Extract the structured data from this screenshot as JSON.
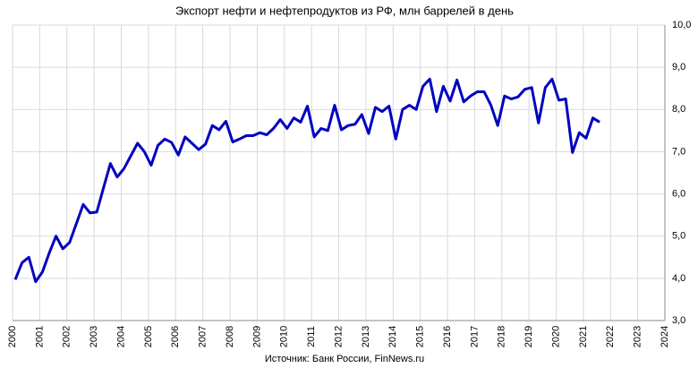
{
  "chart_data": {
    "type": "line",
    "title": "Экспорт нефти и нефтепродуктов из РФ, млн баррелей в день",
    "source": "Источник: Банк России, FinNews.ru",
    "xlim": [
      2000,
      2024
    ],
    "xticks": [
      2000,
      2001,
      2002,
      2003,
      2004,
      2005,
      2006,
      2007,
      2008,
      2009,
      2010,
      2011,
      2012,
      2013,
      2014,
      2015,
      2016,
      2017,
      2018,
      2019,
      2020,
      2021,
      2022,
      2023,
      2024
    ],
    "ylim": [
      3,
      10
    ],
    "yticks": [
      {
        "value": 3,
        "label": "3,0"
      },
      {
        "value": 4,
        "label": "4,0"
      },
      {
        "value": 5,
        "label": "5,0"
      },
      {
        "value": 6,
        "label": "6,0"
      },
      {
        "value": 7,
        "label": "7,0"
      },
      {
        "value": 8,
        "label": "8,0"
      },
      {
        "value": 9,
        "label": "9,0"
      },
      {
        "value": 10,
        "label": "10,0"
      }
    ],
    "grid": true,
    "x": [
      2000.1,
      2000.35,
      2000.6,
      2000.85,
      2001.1,
      2001.35,
      2001.6,
      2001.85,
      2002.1,
      2002.35,
      2002.6,
      2002.85,
      2003.1,
      2003.35,
      2003.6,
      2003.85,
      2004.1,
      2004.35,
      2004.6,
      2004.85,
      2005.1,
      2005.35,
      2005.6,
      2005.85,
      2006.1,
      2006.35,
      2006.6,
      2006.85,
      2007.1,
      2007.35,
      2007.6,
      2007.85,
      2008.1,
      2008.35,
      2008.6,
      2008.85,
      2009.1,
      2009.35,
      2009.6,
      2009.85,
      2010.1,
      2010.35,
      2010.6,
      2010.85,
      2011.1,
      2011.35,
      2011.6,
      2011.85,
      2012.1,
      2012.35,
      2012.6,
      2012.85,
      2013.1,
      2013.35,
      2013.6,
      2013.85,
      2014.1,
      2014.35,
      2014.6,
      2014.85,
      2015.1,
      2015.35,
      2015.6,
      2015.85,
      2016.1,
      2016.35,
      2016.6,
      2016.85,
      2017.1,
      2017.35,
      2017.6,
      2017.85,
      2018.1,
      2018.35,
      2018.6,
      2018.85,
      2019.1,
      2019.35,
      2019.6,
      2019.85,
      2020.1,
      2020.35,
      2020.6,
      2020.85,
      2021.1,
      2021.35,
      2021.6
    ],
    "series": [
      {
        "name": "Экспорт",
        "color": "#0000c0",
        "values": [
          3.97,
          4.37,
          4.5,
          3.92,
          4.15,
          4.6,
          5.0,
          4.7,
          4.85,
          5.3,
          5.75,
          5.55,
          5.57,
          6.15,
          6.72,
          6.4,
          6.6,
          6.9,
          7.2,
          7.0,
          6.68,
          7.15,
          7.3,
          7.22,
          6.92,
          7.35,
          7.2,
          7.05,
          7.18,
          7.62,
          7.52,
          7.72,
          7.23,
          7.3,
          7.38,
          7.38,
          7.45,
          7.4,
          7.55,
          7.76,
          7.55,
          7.8,
          7.7,
          8.08,
          7.35,
          7.55,
          7.5,
          8.1,
          7.52,
          7.62,
          7.65,
          7.88,
          7.43,
          8.05,
          7.95,
          8.08,
          7.3,
          8.0,
          8.1,
          8.0,
          8.55,
          8.72,
          7.95,
          8.55,
          8.2,
          8.7,
          8.18,
          8.32,
          8.42,
          8.42,
          8.1,
          7.62,
          8.32,
          8.25,
          8.3,
          8.48,
          8.52,
          7.68,
          8.52,
          8.72,
          8.22,
          8.25,
          6.98,
          7.45,
          7.32,
          7.8,
          7.7
        ]
      }
    ]
  }
}
